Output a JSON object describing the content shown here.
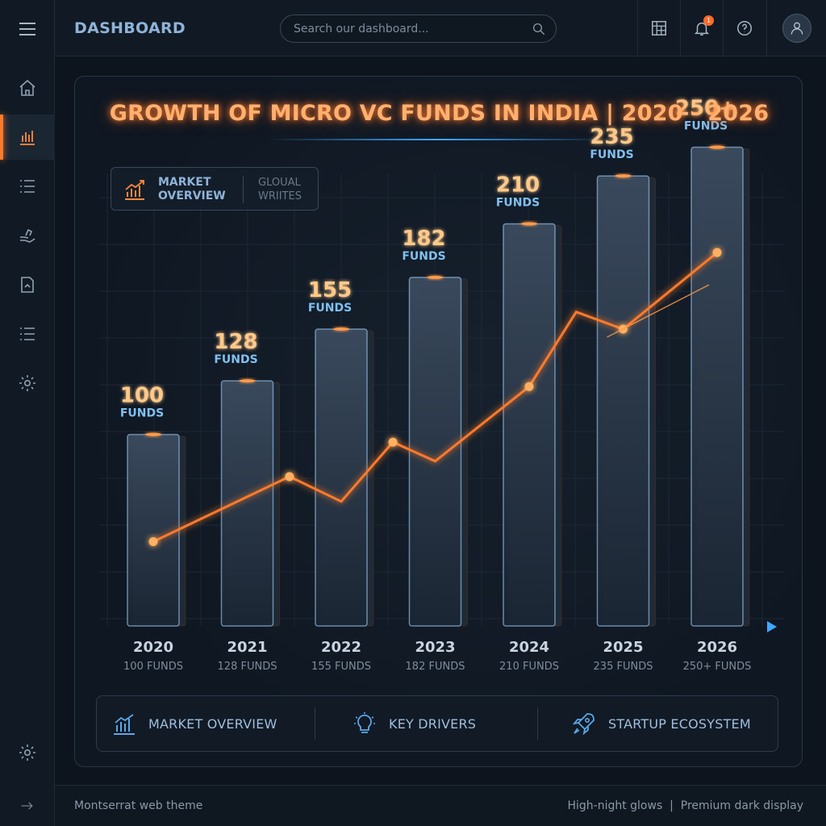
{
  "header": {
    "title": "DASHBOARD",
    "search_placeholder": "Search our dashboard...",
    "notification_count": "1"
  },
  "sidebar": {
    "items": [
      {
        "icon": "home-icon"
      },
      {
        "icon": "bar-chart-icon",
        "active": true
      },
      {
        "icon": "list-icon"
      },
      {
        "icon": "hand-icon"
      },
      {
        "icon": "document-icon"
      },
      {
        "icon": "list-alt-icon"
      },
      {
        "icon": "gear-icon"
      }
    ],
    "bottom_icon": "gear-icon",
    "collapse_icon": "arrow-right-icon"
  },
  "card": {
    "title": "GROWTH OF MICRO VC FUNDS IN INDIA | 2020 - 2026",
    "legend_primary": "MARKET OVERVIEW",
    "legend_secondary": "GLOUAL WRIITES"
  },
  "chart_data": {
    "type": "bar",
    "title": "GROWTH OF MICRO VC FUNDS IN INDIA | 2020 - 2026",
    "categories": [
      "2020",
      "2021",
      "2022",
      "2023",
      "2024",
      "2025",
      "2026"
    ],
    "values": [
      100,
      128,
      155,
      182,
      210,
      235,
      250
    ],
    "value_labels": [
      "100",
      "128",
      "155",
      "182",
      "210",
      "235",
      "250+"
    ],
    "unit_label": "FUNDS",
    "sublabels": [
      "100 FUNDS",
      "128 FUNDS",
      "155 FUNDS",
      "182 FUNDS",
      "210 FUNDS",
      "235 FUNDS",
      "250+ FUNDS"
    ],
    "trend_line": {
      "x": [
        0,
        1.45,
        2,
        2.55,
        3,
        4,
        4.5,
        5,
        6
      ],
      "y": [
        44,
        78,
        65,
        96,
        86,
        125,
        164,
        155,
        195
      ],
      "markers": [
        0,
        1,
        3,
        5,
        7,
        8
      ]
    },
    "ylim": [
      0,
      270
    ],
    "accent_color": "#ff7a2a",
    "bar_color": "#2a3848",
    "axis_color": "#3fa9ff"
  },
  "tabs": [
    {
      "label": "MARKET OVERVIEW",
      "icon": "bar-chart-icon"
    },
    {
      "label": "KEY DRIVERS",
      "icon": "lightbulb-icon"
    },
    {
      "label": "STARTUP ECOSYSTEM",
      "icon": "rocket-icon"
    }
  ],
  "footer": {
    "left": "Montserrat web theme",
    "right": "High-night glows  |  Premium dark display"
  }
}
